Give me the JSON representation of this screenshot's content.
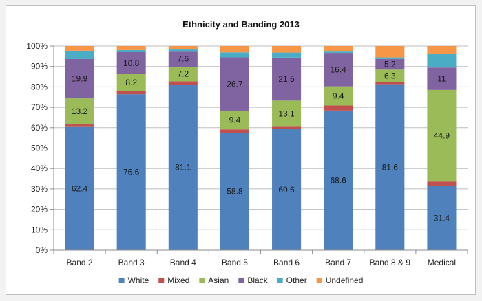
{
  "chart_data": {
    "type": "bar",
    "stacked": true,
    "percent_axis": true,
    "title": "Ethnicity and Banding 2013",
    "xlabel": "",
    "ylabel": "",
    "ylim": [
      0,
      100
    ],
    "y_ticks": [
      "0%",
      "10%",
      "20%",
      "30%",
      "40%",
      "50%",
      "60%",
      "70%",
      "80%",
      "90%",
      "100%"
    ],
    "grid": true,
    "legend_position": "bottom",
    "categories": [
      "Band 2",
      "Band 3",
      "Band 4",
      "Band 5",
      "Band 6",
      "Band 7",
      "Band 8 & 9",
      "Medical"
    ],
    "series": [
      {
        "name": "White",
        "color": "#4f81bd",
        "values": [
          62.4,
          76.6,
          81.1,
          58.8,
          60.6,
          68.6,
          81.6,
          31.4
        ],
        "labels": [
          "62.4",
          "76.6",
          "81.1",
          "58.8",
          "60.6",
          "68.6",
          "81.6",
          "31.4"
        ]
      },
      {
        "name": "Mixed",
        "color": "#c0504d",
        "values": [
          1.3,
          1.7,
          1.6,
          1.8,
          1.2,
          2.5,
          0.9,
          2.2
        ],
        "labels": [
          "",
          "",
          "",
          "",
          "",
          "",
          "",
          ""
        ]
      },
      {
        "name": "Asian",
        "color": "#9bbb59",
        "values": [
          13.2,
          8.2,
          7.2,
          9.4,
          13.1,
          9.4,
          6.3,
          44.9
        ],
        "labels": [
          "13.2",
          "8.2",
          "7.2",
          "9.4",
          "13.1",
          "9.4",
          "6.3",
          "44.9"
        ]
      },
      {
        "name": "Black",
        "color": "#8064a2",
        "values": [
          19.9,
          10.8,
          7.6,
          26.7,
          21.5,
          16.4,
          5.2,
          11
        ],
        "labels": [
          "19.9",
          "10.8",
          "7.6",
          "26.7",
          "21.5",
          "16.4",
          "5.2",
          "11"
        ]
      },
      {
        "name": "Other",
        "color": "#4bacc6",
        "values": [
          4.2,
          1.0,
          0.8,
          2.5,
          2.5,
          1.0,
          0.8,
          6.7
        ],
        "labels": [
          "",
          "",
          "",
          "",
          "",
          "",
          "",
          ""
        ]
      },
      {
        "name": "Undefined",
        "color": "#f79646",
        "values": [
          2.4,
          2.0,
          1.7,
          3.2,
          3.3,
          2.4,
          5.6,
          3.8
        ],
        "labels": [
          "",
          "",
          "",
          "",
          "",
          "",
          "",
          ""
        ]
      }
    ]
  }
}
